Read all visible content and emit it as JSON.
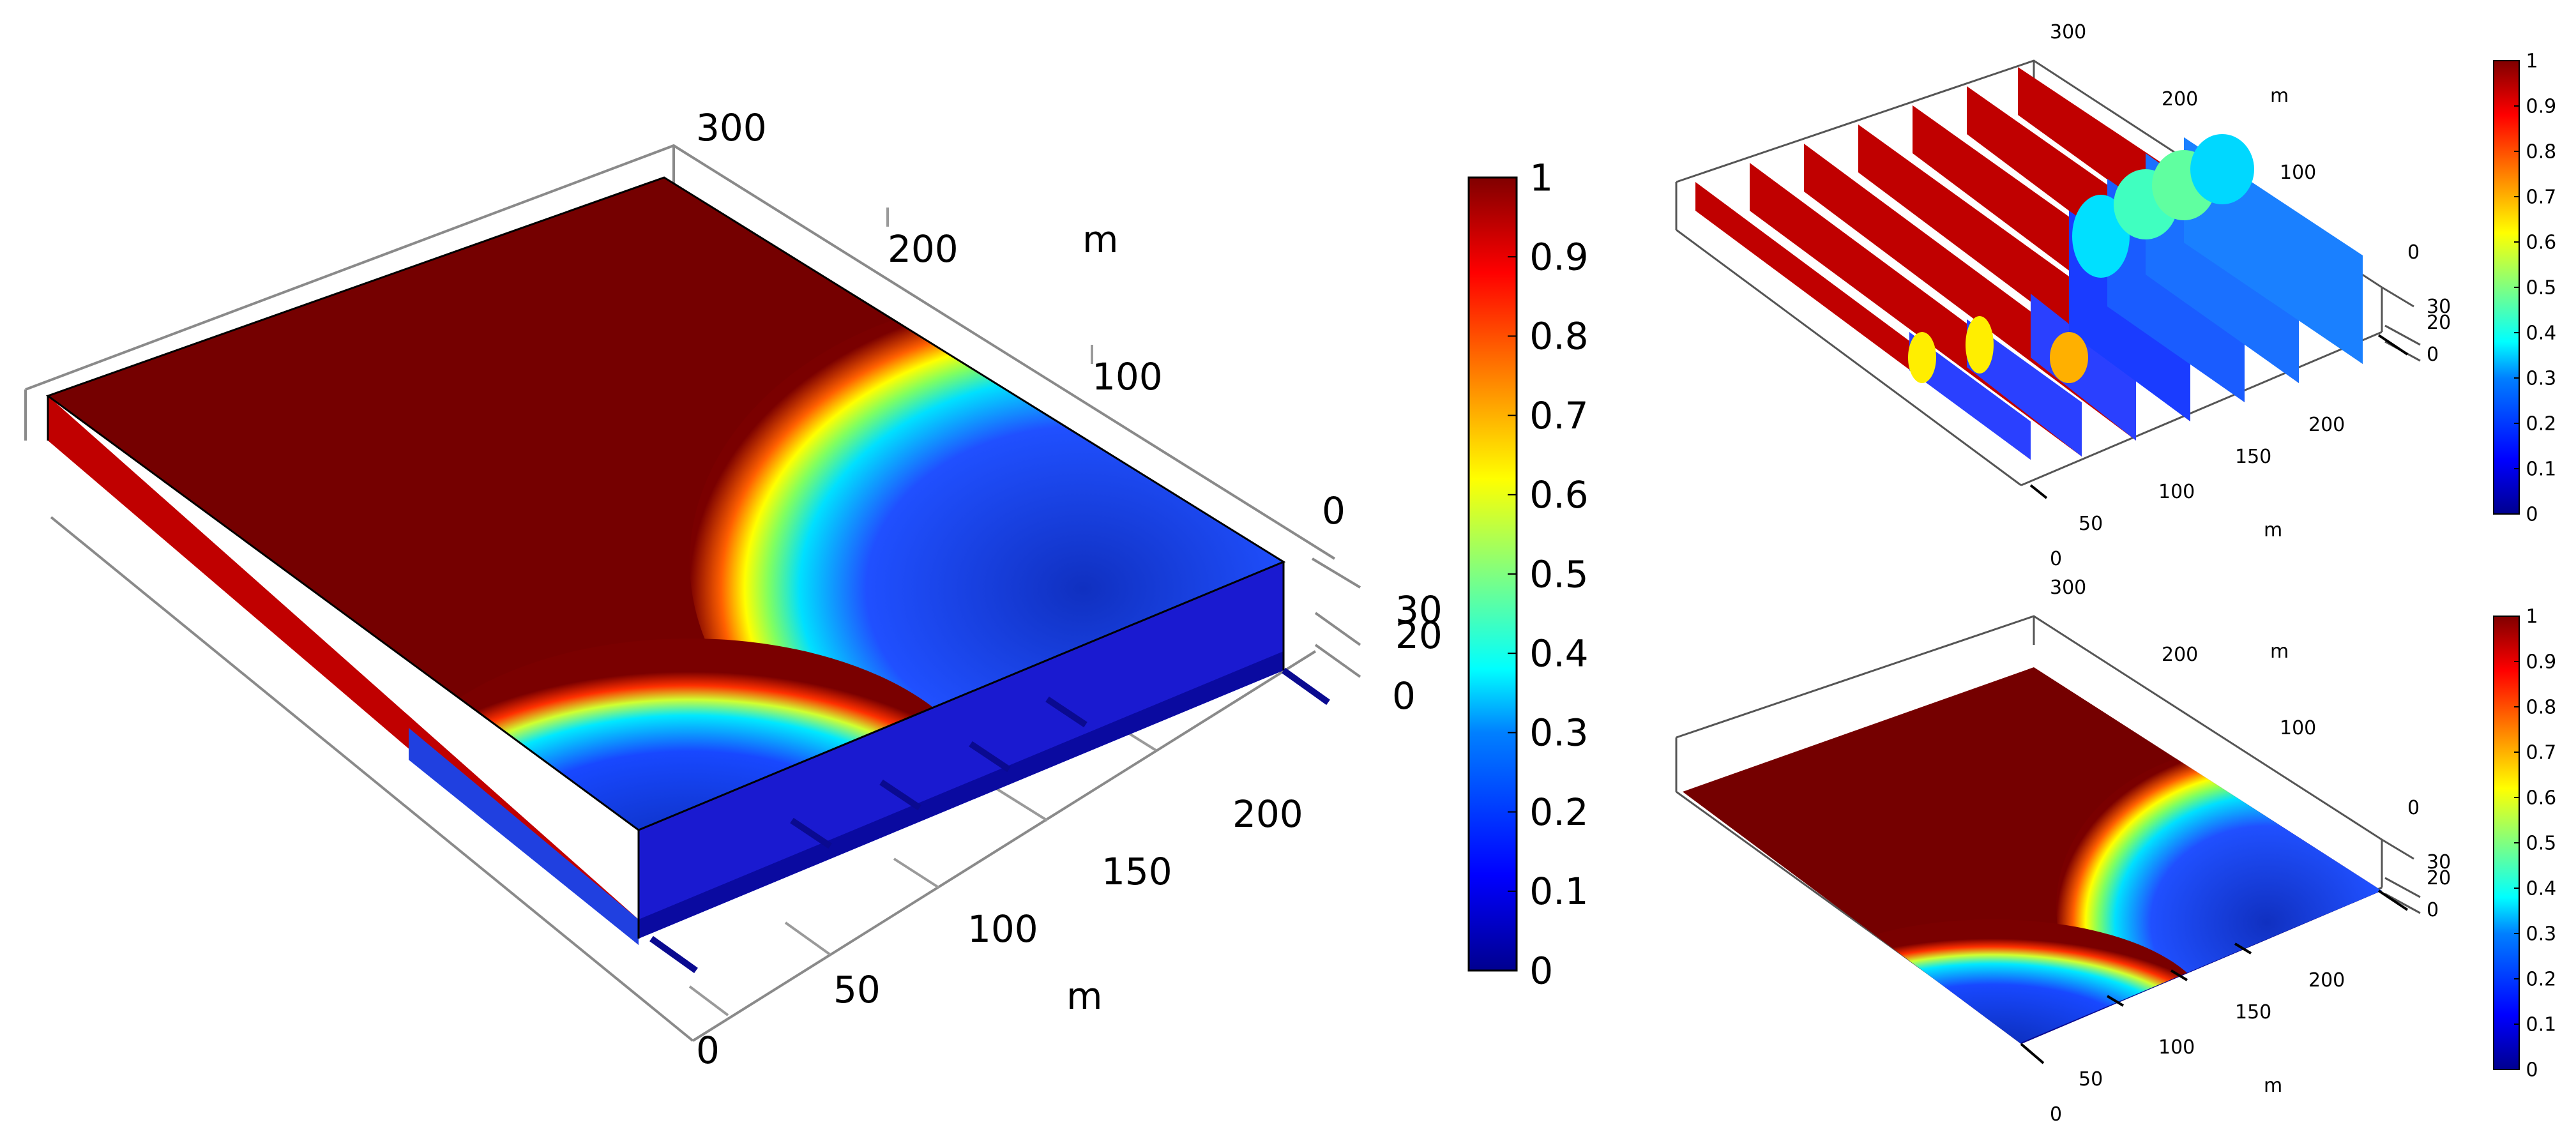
{
  "colorbar_scale": {
    "ticks": [
      "0",
      "0.1",
      "0.2",
      "0.3",
      "0.4",
      "0.5",
      "0.6",
      "0.7",
      "0.8",
      "0.9",
      "1"
    ],
    "colormap": [
      "#00008f",
      "#0000ff",
      "#0080ff",
      "#00ffff",
      "#80ff80",
      "#ffff00",
      "#ff8000",
      "#ff0000",
      "#800000"
    ]
  },
  "chart_data": [
    {
      "type": "heatmap",
      "view": "3d-block",
      "description_label": "",
      "axis_unit": "m",
      "x_ticks": [
        "0",
        "50",
        "100",
        "150",
        "200"
      ],
      "y_ticks": [
        "300",
        "200",
        "100",
        "0"
      ],
      "z_ticks": [
        "0",
        "20",
        "30"
      ],
      "range": [
        0,
        1
      ]
    },
    {
      "type": "heatmap",
      "view": "3d-slices",
      "axis_unit": "m",
      "x_ticks": [
        "0",
        "50",
        "100",
        "150",
        "200"
      ],
      "y_ticks": [
        "300",
        "200",
        "100",
        "0"
      ],
      "z_ticks": [
        "0",
        "20",
        "30"
      ],
      "range": [
        0,
        1
      ]
    },
    {
      "type": "heatmap",
      "view": "3d-bottom-surface",
      "axis_unit": "m",
      "x_ticks": [
        "0",
        "50",
        "100",
        "150",
        "200"
      ],
      "y_ticks": [
        "300",
        "200",
        "100",
        "0"
      ],
      "z_ticks": [
        "0",
        "20",
        "30"
      ],
      "range": [
        0,
        1
      ]
    }
  ]
}
